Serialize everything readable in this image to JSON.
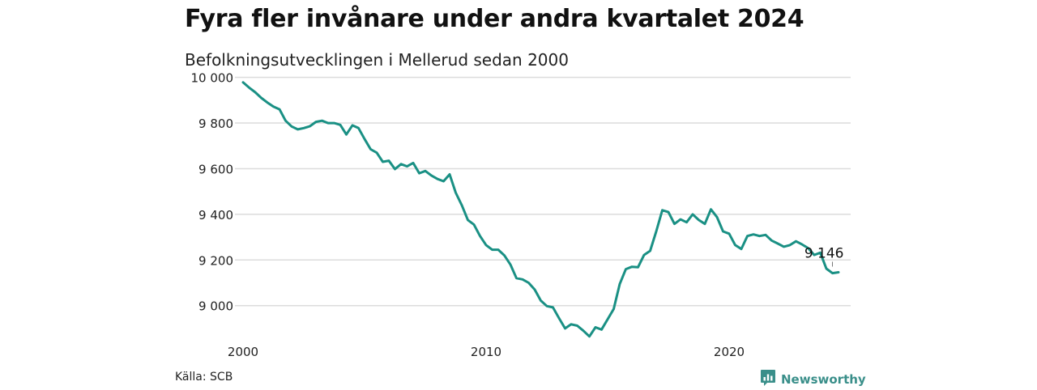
{
  "header": {
    "title": "Fyra fler invånare under andra kvartalet 2024",
    "subtitle": "Befolkningsutvecklingen i Mellerud sedan 2000"
  },
  "footer": {
    "source": "Källa: SCB",
    "brand": "Newsworthy",
    "brand_icon": "newsworthy-logo-icon",
    "brand_color": "#3a8f8a"
  },
  "chart_data": {
    "type": "line",
    "title": "Fyra fler invånare under andra kvartalet 2024",
    "subtitle": "Befolkningsutvecklingen i Mellerud sedan 2000",
    "xlabel": "",
    "ylabel": "",
    "xlim": [
      2000,
      2025
    ],
    "ylim": [
      8850,
      10020
    ],
    "grid": true,
    "legend": "none",
    "line_color": "#1a9084",
    "y_ticks": [
      {
        "value": 10000,
        "label": "10 000"
      },
      {
        "value": 9800,
        "label": "9 800"
      },
      {
        "value": 9600,
        "label": "9 600"
      },
      {
        "value": 9400,
        "label": "9 400"
      },
      {
        "value": 9200,
        "label": "9 200"
      },
      {
        "value": 9000,
        "label": "9 000"
      }
    ],
    "x_ticks": [
      {
        "value": 2000,
        "label": "2000"
      },
      {
        "value": 2010,
        "label": "2010"
      },
      {
        "value": 2020,
        "label": "2020"
      }
    ],
    "annotation": {
      "x": 2024.25,
      "y": 9146,
      "label": "9 146"
    },
    "series": [
      {
        "values": [
          [
            2000.0,
            9978
          ],
          [
            2000.25,
            9955
          ],
          [
            2000.5,
            9935
          ],
          [
            2000.75,
            9910
          ],
          [
            2001.0,
            9890
          ],
          [
            2001.25,
            9872
          ],
          [
            2001.5,
            9860
          ],
          [
            2001.75,
            9810
          ],
          [
            2002.0,
            9785
          ],
          [
            2002.25,
            9772
          ],
          [
            2002.5,
            9778
          ],
          [
            2002.75,
            9786
          ],
          [
            2003.0,
            9805
          ],
          [
            2003.25,
            9810
          ],
          [
            2003.5,
            9800
          ],
          [
            2003.75,
            9800
          ],
          [
            2004.0,
            9792
          ],
          [
            2004.25,
            9750
          ],
          [
            2004.5,
            9790
          ],
          [
            2004.75,
            9778
          ],
          [
            2005.0,
            9730
          ],
          [
            2005.25,
            9685
          ],
          [
            2005.5,
            9670
          ],
          [
            2005.75,
            9630
          ],
          [
            2006.0,
            9635
          ],
          [
            2006.25,
            9598
          ],
          [
            2006.5,
            9620
          ],
          [
            2006.75,
            9610
          ],
          [
            2007.0,
            9625
          ],
          [
            2007.25,
            9580
          ],
          [
            2007.5,
            9590
          ],
          [
            2007.75,
            9570
          ],
          [
            2008.0,
            9555
          ],
          [
            2008.25,
            9545
          ],
          [
            2008.5,
            9575
          ],
          [
            2008.75,
            9495
          ],
          [
            2009.0,
            9440
          ],
          [
            2009.25,
            9375
          ],
          [
            2009.5,
            9355
          ],
          [
            2009.75,
            9305
          ],
          [
            2010.0,
            9265
          ],
          [
            2010.25,
            9245
          ],
          [
            2010.5,
            9245
          ],
          [
            2010.75,
            9220
          ],
          [
            2011.0,
            9180
          ],
          [
            2011.25,
            9120
          ],
          [
            2011.5,
            9115
          ],
          [
            2011.75,
            9100
          ],
          [
            2012.0,
            9070
          ],
          [
            2012.25,
            9022
          ],
          [
            2012.5,
            8998
          ],
          [
            2012.75,
            8992
          ],
          [
            2013.0,
            8945
          ],
          [
            2013.25,
            8900
          ],
          [
            2013.5,
            8918
          ],
          [
            2013.75,
            8912
          ],
          [
            2014.0,
            8890
          ],
          [
            2014.25,
            8865
          ],
          [
            2014.5,
            8905
          ],
          [
            2014.75,
            8895
          ],
          [
            2015.0,
            8940
          ],
          [
            2015.25,
            8985
          ],
          [
            2015.5,
            9095
          ],
          [
            2015.75,
            9160
          ],
          [
            2016.0,
            9170
          ],
          [
            2016.25,
            9168
          ],
          [
            2016.5,
            9222
          ],
          [
            2016.75,
            9240
          ],
          [
            2017.0,
            9325
          ],
          [
            2017.25,
            9418
          ],
          [
            2017.5,
            9410
          ],
          [
            2017.75,
            9358
          ],
          [
            2018.0,
            9378
          ],
          [
            2018.25,
            9365
          ],
          [
            2018.5,
            9400
          ],
          [
            2018.75,
            9375
          ],
          [
            2019.0,
            9358
          ],
          [
            2019.25,
            9422
          ],
          [
            2019.5,
            9388
          ],
          [
            2019.75,
            9325
          ],
          [
            2020.0,
            9315
          ],
          [
            2020.25,
            9265
          ],
          [
            2020.5,
            9248
          ],
          [
            2020.75,
            9305
          ],
          [
            2021.0,
            9312
          ],
          [
            2021.25,
            9305
          ],
          [
            2021.5,
            9310
          ],
          [
            2021.75,
            9285
          ],
          [
            2022.0,
            9272
          ],
          [
            2022.25,
            9258
          ],
          [
            2022.5,
            9265
          ],
          [
            2022.75,
            9282
          ],
          [
            2023.0,
            9268
          ],
          [
            2023.25,
            9252
          ],
          [
            2023.5,
            9222
          ],
          [
            2023.75,
            9232
          ],
          [
            2024.0,
            9162
          ],
          [
            2024.25,
            9142
          ],
          [
            2024.5,
            9146
          ]
        ]
      }
    ]
  }
}
